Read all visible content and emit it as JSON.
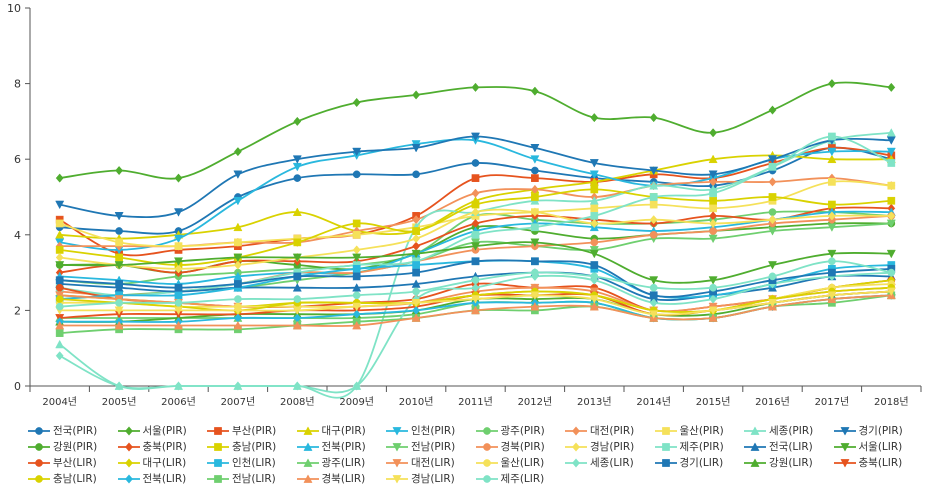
{
  "chart_data": {
    "type": "line",
    "title": "",
    "xlabel": "",
    "ylabel": "",
    "ylim": [
      0,
      10
    ],
    "yticks": [
      0,
      2,
      4,
      6,
      8,
      10
    ],
    "grid": false,
    "legend_position": "bottom",
    "categories": [
      "2004년",
      "2005년",
      "2006년",
      "2007년",
      "2008년",
      "2009년",
      "2010년",
      "2011년",
      "2012년",
      "2013년",
      "2014년",
      "2015년",
      "2016년",
      "2017년",
      "2018년"
    ],
    "series": [
      {
        "name": "전국(PIR)",
        "color": "#1f77b4",
        "marker": "circle",
        "values": [
          4.2,
          4.1,
          4.1,
          5.0,
          5.5,
          5.6,
          5.6,
          5.9,
          5.7,
          5.5,
          5.4,
          5.3,
          5.7,
          6.3,
          6.0
        ]
      },
      {
        "name": "서울(PIR)",
        "color": "#4fad2f",
        "marker": "diamond",
        "values": [
          5.5,
          5.7,
          5.5,
          6.2,
          7.0,
          7.5,
          7.7,
          7.9,
          7.8,
          7.1,
          7.1,
          6.7,
          7.3,
          8.0,
          7.9
        ]
      },
      {
        "name": "부산(PIR)",
        "color": "#e6531e",
        "marker": "square",
        "values": [
          4.4,
          3.5,
          3.6,
          3.7,
          3.9,
          4.0,
          4.5,
          5.5,
          5.5,
          5.4,
          5.6,
          5.5,
          5.9,
          6.3,
          6.1
        ]
      },
      {
        "name": "대구(PIR)",
        "color": "#d9d200",
        "marker": "triangle",
        "values": [
          4.0,
          3.9,
          4.0,
          4.2,
          4.6,
          4.1,
          4.1,
          4.9,
          5.2,
          5.4,
          5.7,
          6.0,
          6.1,
          6.0,
          6.0
        ]
      },
      {
        "name": "인천(PIR)",
        "color": "#29b8de",
        "marker": "triangle-down",
        "values": [
          3.8,
          3.6,
          3.9,
          4.9,
          5.8,
          6.1,
          6.4,
          6.5,
          6.0,
          5.6,
          5.3,
          5.5,
          6.0,
          6.2,
          6.2
        ]
      },
      {
        "name": "광주(PIR)",
        "color": "#6fcf6f",
        "marker": "circle",
        "values": [
          2.8,
          2.7,
          2.9,
          3.0,
          3.1,
          3.2,
          3.5,
          4.5,
          4.4,
          4.3,
          4.3,
          4.4,
          4.6,
          4.6,
          4.5
        ]
      },
      {
        "name": "대전(PIR)",
        "color": "#f2915a",
        "marker": "diamond",
        "values": [
          3.7,
          3.7,
          3.7,
          3.8,
          3.8,
          4.1,
          4.4,
          5.1,
          5.2,
          5.0,
          5.3,
          5.4,
          5.4,
          5.5,
          5.3
        ]
      },
      {
        "name": "울산(PIR)",
        "color": "#f5e15a",
        "marker": "square",
        "values": [
          4.3,
          3.8,
          3.7,
          3.8,
          3.9,
          4.0,
          4.2,
          4.5,
          4.6,
          4.7,
          4.8,
          4.7,
          4.9,
          5.4,
          5.3
        ]
      },
      {
        "name": "세종(PIR)",
        "color": "#7fe3c6",
        "marker": "triangle",
        "values": [
          1.1,
          0.0,
          0.0,
          0.0,
          0.0,
          0.0,
          4.2,
          4.6,
          4.9,
          4.9,
          5.3,
          5.2,
          5.8,
          6.5,
          6.7
        ]
      },
      {
        "name": "경기(PIR)",
        "color": "#1f77b4",
        "marker": "triangle-down",
        "values": [
          4.8,
          4.5,
          4.6,
          5.6,
          6.0,
          6.2,
          6.3,
          6.6,
          6.3,
          5.9,
          5.7,
          5.6,
          6.0,
          6.5,
          6.5
        ]
      },
      {
        "name": "강원(PIR)",
        "color": "#4fad2f",
        "marker": "circle",
        "values": [
          3.2,
          3.2,
          3.0,
          3.3,
          3.2,
          3.1,
          3.5,
          4.2,
          4.1,
          3.9,
          4.0,
          4.1,
          4.2,
          4.3,
          4.3
        ]
      },
      {
        "name": "충북(PIR)",
        "color": "#e6531e",
        "marker": "diamond",
        "values": [
          3.0,
          3.2,
          3.0,
          3.3,
          3.3,
          3.3,
          3.7,
          4.3,
          4.5,
          4.4,
          4.3,
          4.5,
          4.4,
          4.7,
          4.7
        ]
      },
      {
        "name": "충남(PIR)",
        "color": "#d9d200",
        "marker": "square",
        "values": [
          3.6,
          3.4,
          3.2,
          3.4,
          3.8,
          4.3,
          4.1,
          4.8,
          5.0,
          5.2,
          5.0,
          4.9,
          5.0,
          4.8,
          4.9
        ]
      },
      {
        "name": "전북(PIR)",
        "color": "#29b8de",
        "marker": "triangle",
        "values": [
          2.9,
          2.8,
          2.7,
          2.9,
          3.0,
          3.0,
          3.5,
          4.1,
          4.3,
          4.2,
          4.1,
          4.2,
          4.4,
          4.6,
          4.6
        ]
      },
      {
        "name": "전남(PIR)",
        "color": "#6fcf6f",
        "marker": "triangle-down",
        "values": [
          2.3,
          2.4,
          2.5,
          2.6,
          2.8,
          3.0,
          3.3,
          3.8,
          3.7,
          3.6,
          3.9,
          3.9,
          4.1,
          4.2,
          4.3
        ]
      },
      {
        "name": "경북(PIR)",
        "color": "#f2915a",
        "marker": "circle",
        "values": [
          2.5,
          2.4,
          2.5,
          2.7,
          3.0,
          3.0,
          3.3,
          3.6,
          3.7,
          3.8,
          4.0,
          4.1,
          4.3,
          4.4,
          4.5
        ]
      },
      {
        "name": "경남(PIR)",
        "color": "#f5e15a",
        "marker": "diamond",
        "values": [
          3.4,
          3.2,
          3.1,
          3.2,
          3.4,
          3.6,
          3.9,
          4.6,
          4.6,
          4.3,
          4.4,
          4.3,
          4.4,
          4.5,
          4.5
        ]
      },
      {
        "name": "제주(PIR)",
        "color": "#7fe3c6",
        "marker": "square",
        "values": [
          2.6,
          2.4,
          2.5,
          2.7,
          3.0,
          3.2,
          3.3,
          4.0,
          4.2,
          4.5,
          5.0,
          5.1,
          5.8,
          6.6,
          5.9
        ]
      },
      {
        "name": "전국(LIR)",
        "color": "#1f77b4",
        "marker": "triangle",
        "values": [
          2.7,
          2.6,
          2.5,
          2.6,
          2.6,
          2.6,
          2.7,
          2.9,
          3.0,
          2.9,
          2.3,
          2.4,
          2.6,
          2.9,
          2.9
        ]
      },
      {
        "name": "서울(LIR)",
        "color": "#4fad2f",
        "marker": "triangle-down",
        "values": [
          3.2,
          3.2,
          3.3,
          3.4,
          3.4,
          3.4,
          3.5,
          3.7,
          3.8,
          3.5,
          2.8,
          2.8,
          3.2,
          3.5,
          3.5
        ]
      },
      {
        "name": "부산(LIR)",
        "color": "#e6531e",
        "marker": "circle",
        "values": [
          2.6,
          2.3,
          2.2,
          2.1,
          2.1,
          2.2,
          2.3,
          2.7,
          2.6,
          2.6,
          2.0,
          2.1,
          2.3,
          2.6,
          2.8
        ]
      },
      {
        "name": "대구(LIR)",
        "color": "#d9d200",
        "marker": "diamond",
        "values": [
          2.4,
          2.3,
          2.2,
          2.1,
          2.2,
          2.2,
          2.2,
          2.4,
          2.5,
          2.4,
          1.9,
          2.0,
          2.3,
          2.6,
          2.8
        ]
      },
      {
        "name": "인천(LIR)",
        "color": "#29b8de",
        "marker": "square",
        "values": [
          2.3,
          2.4,
          2.4,
          2.6,
          2.9,
          3.1,
          3.2,
          3.3,
          3.3,
          3.1,
          2.4,
          2.4,
          2.7,
          3.1,
          3.2
        ]
      },
      {
        "name": "광주(LIR)",
        "color": "#6fcf6f",
        "marker": "triangle",
        "values": [
          1.8,
          1.8,
          1.8,
          1.8,
          1.8,
          1.8,
          1.9,
          2.2,
          2.2,
          2.2,
          1.8,
          1.8,
          2.1,
          2.3,
          2.4
        ]
      },
      {
        "name": "대전(LIR)",
        "color": "#f2915a",
        "marker": "triangle-down",
        "values": [
          2.4,
          2.3,
          2.2,
          2.1,
          2.1,
          2.1,
          2.2,
          2.5,
          2.6,
          2.5,
          2.0,
          2.1,
          2.3,
          2.5,
          2.6
        ]
      },
      {
        "name": "울산(LIR)",
        "color": "#f5e15a",
        "marker": "circle",
        "values": [
          2.2,
          2.2,
          2.1,
          2.1,
          2.1,
          2.1,
          2.2,
          2.3,
          2.4,
          2.4,
          2.0,
          2.0,
          2.3,
          2.6,
          2.7
        ]
      },
      {
        "name": "세종(LIR)",
        "color": "#7fe3c6",
        "marker": "diamond",
        "values": [
          0.8,
          0.0,
          0.0,
          0.0,
          0.0,
          0.0,
          2.3,
          2.6,
          2.9,
          2.8,
          2.2,
          2.3,
          2.7,
          2.9,
          3.0
        ]
      },
      {
        "name": "경기(LIR)",
        "color": "#1f77b4",
        "marker": "square",
        "values": [
          2.8,
          2.7,
          2.6,
          2.7,
          2.9,
          2.9,
          3.0,
          3.3,
          3.3,
          3.2,
          2.4,
          2.5,
          2.8,
          3.0,
          3.1
        ]
      },
      {
        "name": "강원(LIR)",
        "color": "#4fad2f",
        "marker": "triangle",
        "values": [
          1.7,
          1.7,
          1.8,
          1.9,
          1.9,
          1.9,
          2.0,
          2.3,
          2.3,
          2.3,
          1.9,
          1.9,
          2.2,
          2.4,
          2.5
        ]
      },
      {
        "name": "충북(LIR)",
        "color": "#e6531e",
        "marker": "triangle-down",
        "values": [
          1.8,
          1.9,
          1.9,
          1.9,
          2.0,
          2.0,
          2.1,
          2.4,
          2.4,
          2.4,
          1.9,
          2.0,
          2.2,
          2.4,
          2.5
        ]
      },
      {
        "name": "충남(LIR)",
        "color": "#d9d200",
        "marker": "circle",
        "values": [
          2.3,
          2.2,
          2.1,
          2.0,
          2.2,
          2.2,
          2.2,
          2.4,
          2.5,
          2.4,
          2.0,
          2.0,
          2.3,
          2.5,
          2.6
        ]
      },
      {
        "name": "전북(LIR)",
        "color": "#29b8de",
        "marker": "diamond",
        "values": [
          1.7,
          1.7,
          1.7,
          1.8,
          1.8,
          1.9,
          2.0,
          2.2,
          2.2,
          2.2,
          1.8,
          1.8,
          2.1,
          2.3,
          2.4
        ]
      },
      {
        "name": "전남(LIR)",
        "color": "#6fcf6f",
        "marker": "square",
        "values": [
          1.4,
          1.5,
          1.5,
          1.5,
          1.6,
          1.7,
          1.8,
          2.0,
          2.0,
          2.1,
          1.8,
          1.8,
          2.1,
          2.2,
          2.4
        ]
      },
      {
        "name": "경북(LIR)",
        "color": "#f2915a",
        "marker": "triangle",
        "values": [
          1.6,
          1.6,
          1.6,
          1.6,
          1.6,
          1.6,
          1.8,
          2.0,
          2.1,
          2.1,
          1.8,
          1.8,
          2.1,
          2.3,
          2.4
        ]
      },
      {
        "name": "경남(LIR)",
        "color": "#f5e15a",
        "marker": "triangle-down",
        "values": [
          2.0,
          2.0,
          2.0,
          2.0,
          2.0,
          2.1,
          2.2,
          2.3,
          2.4,
          2.3,
          1.9,
          2.0,
          2.2,
          2.4,
          2.5
        ]
      },
      {
        "name": "제주(LIR)",
        "color": "#7fe3c6",
        "marker": "circle",
        "values": [
          2.1,
          2.2,
          2.2,
          2.3,
          2.3,
          2.4,
          2.5,
          2.8,
          3.0,
          2.9,
          2.6,
          2.6,
          2.9,
          3.3,
          3.0
        ]
      }
    ]
  }
}
